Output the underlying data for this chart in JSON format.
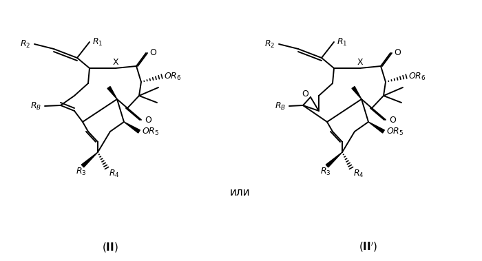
{
  "background_color": "#ffffff",
  "label_II": "($\\mathbf{II}$)",
  "label_IIp": "($\\mathbf{II'}$)",
  "label_or": "или",
  "figsize": [
    7.0,
    3.79
  ],
  "dpi": 100,
  "lw": 1.4
}
